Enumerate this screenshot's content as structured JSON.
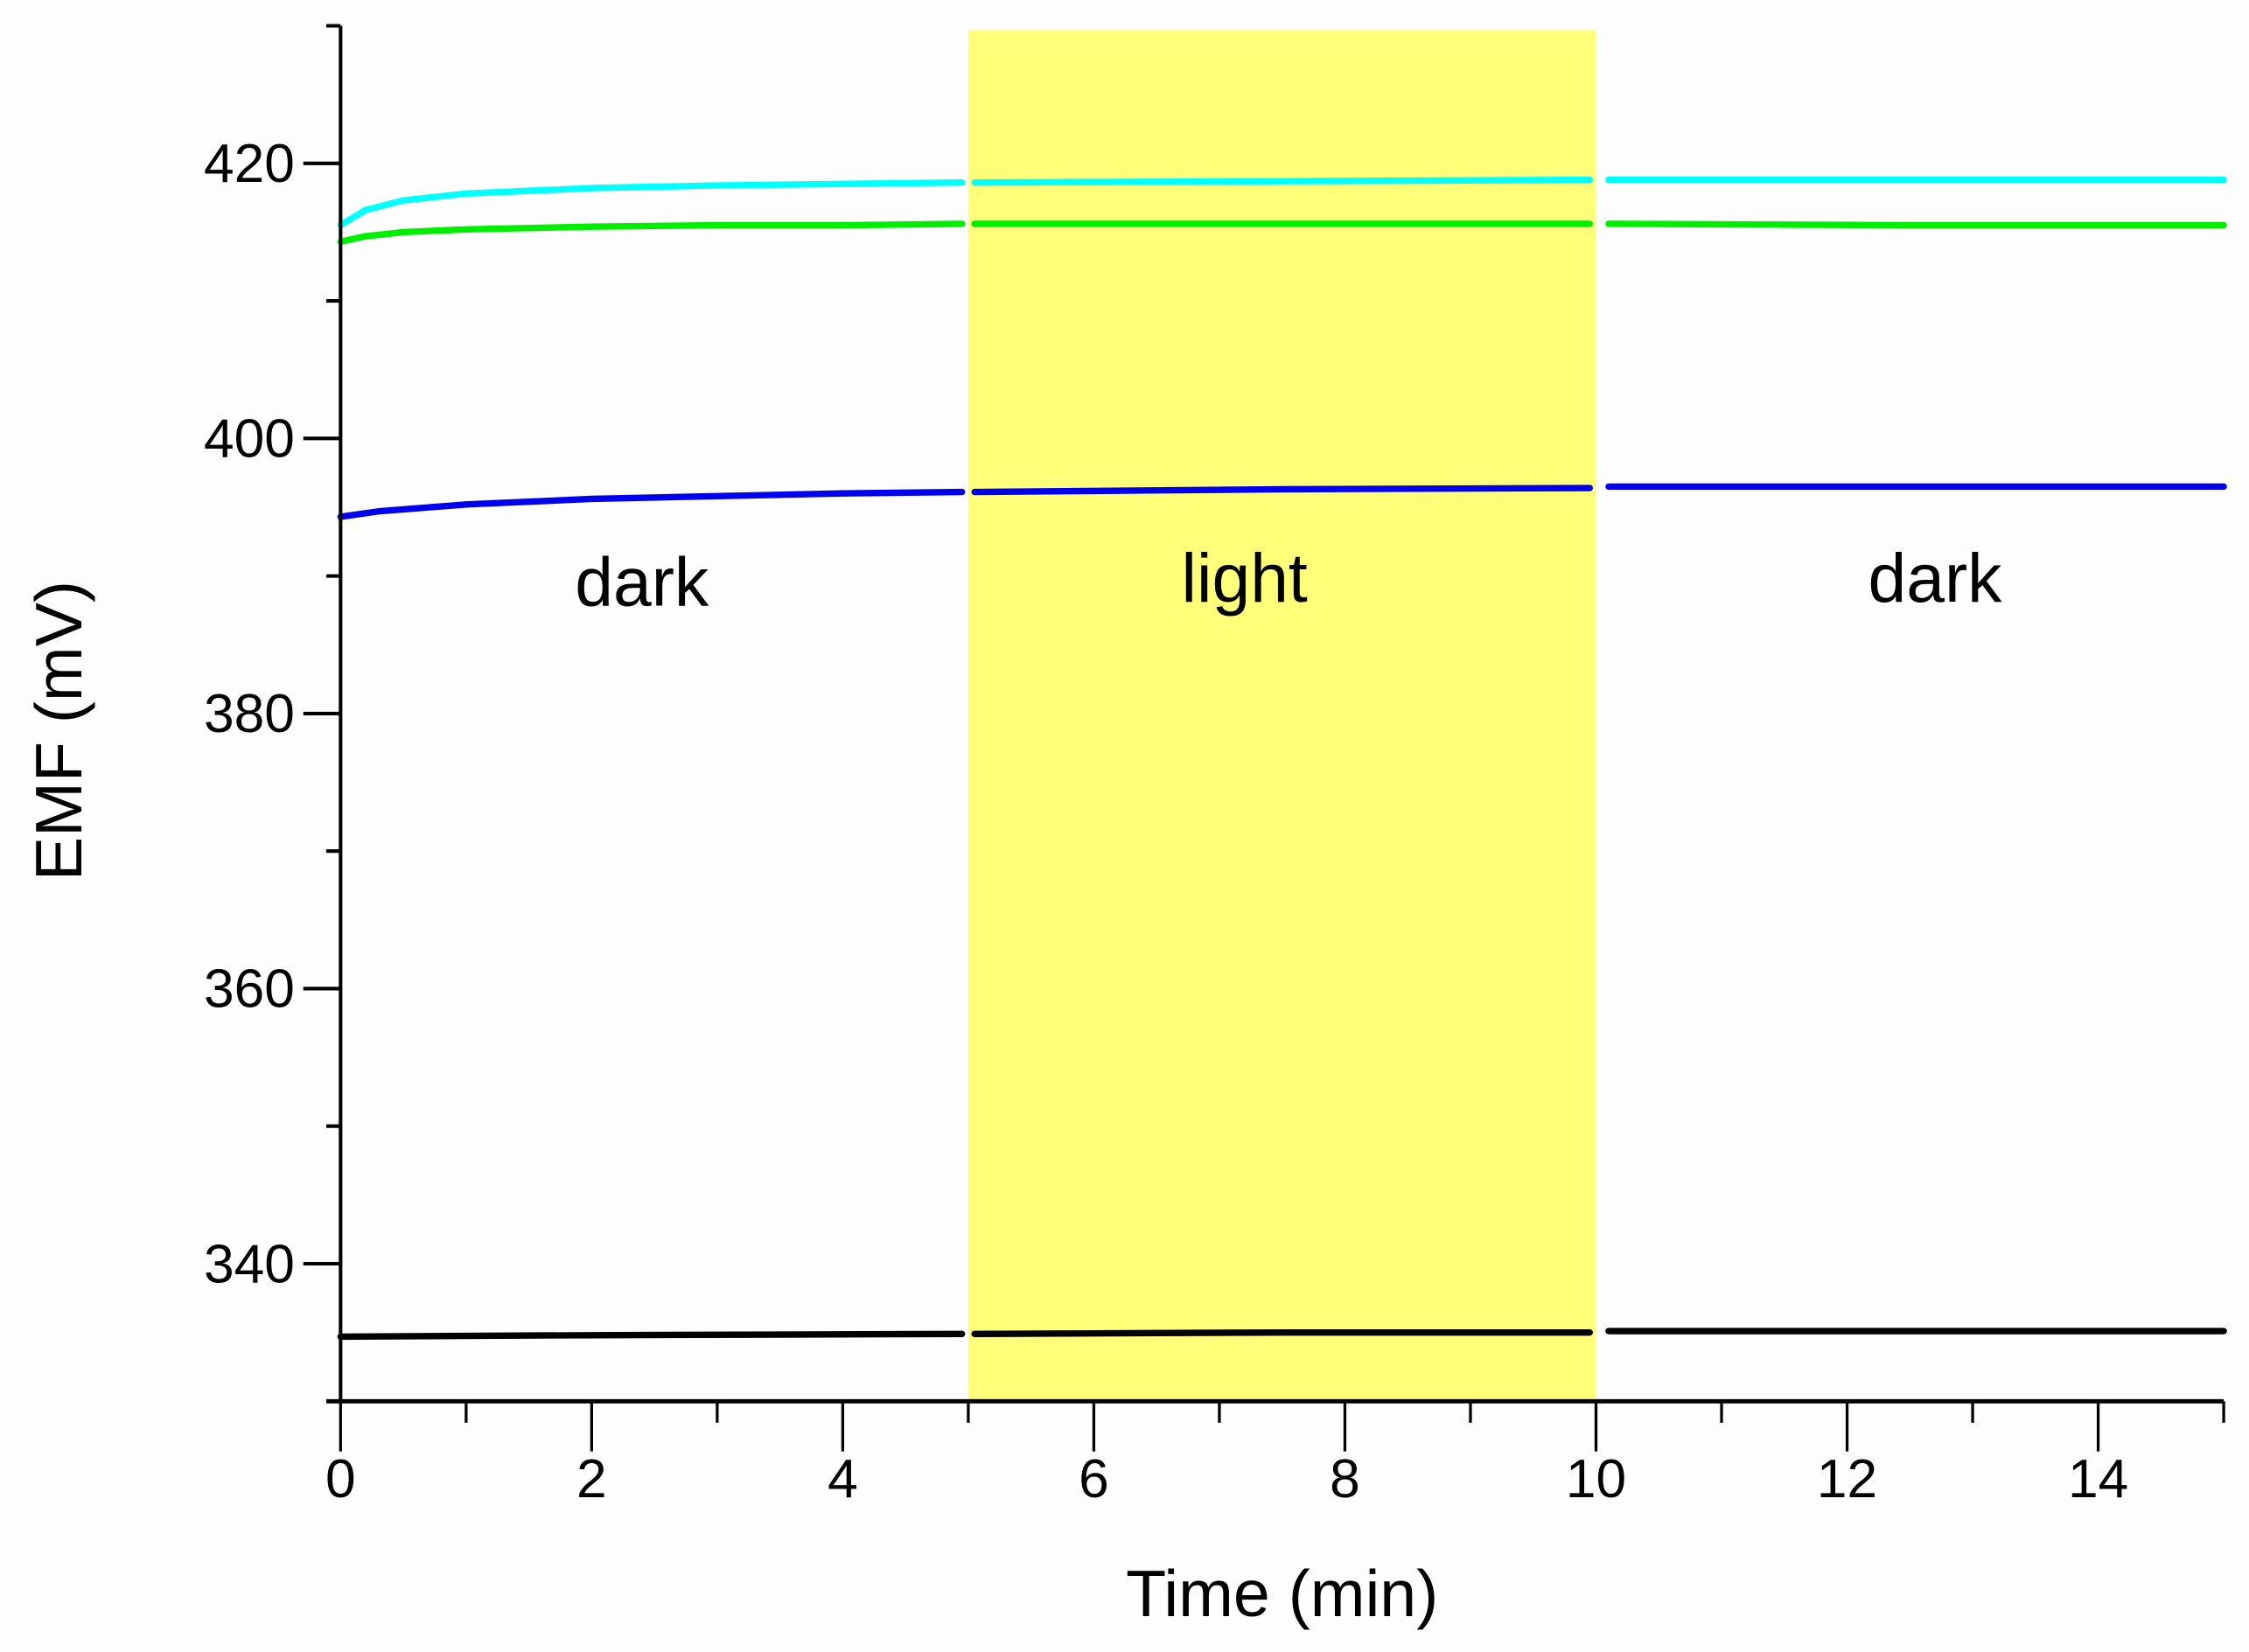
{
  "chart_data": {
    "type": "line",
    "xlabel": "Time (min)",
    "ylabel": "EMF (mV)",
    "xlim": [
      0,
      15
    ],
    "ylim": [
      330,
      430
    ],
    "xticks": [
      0,
      2,
      4,
      6,
      8,
      10,
      12,
      14
    ],
    "xtick_labels": [
      "0",
      "2",
      "4",
      "6",
      "8",
      "10",
      "12",
      "14"
    ],
    "yticks": [
      340,
      360,
      380,
      400,
      420
    ],
    "ytick_labels": [
      "340",
      "360",
      "380",
      "400",
      "420"
    ],
    "grid": false,
    "shaded_region": {
      "x": [
        5,
        10
      ],
      "color": "#ffff7a"
    },
    "annotations": [
      {
        "text": "dark",
        "x": 2.4,
        "y": 389.5
      },
      {
        "text": "light",
        "x": 7.2,
        "y": 389.8
      },
      {
        "text": "dark",
        "x": 12.7,
        "y": 389.8
      }
    ],
    "series": [
      {
        "color": "#00ffff",
        "segments": [
          {
            "x": [
              0,
              0.2,
              0.5,
              1,
              2,
              3,
              4,
              4.95
            ],
            "y": [
              415.5,
              416.6,
              417.3,
              417.8,
              418.2,
              418.4,
              418.5,
              418.6
            ]
          },
          {
            "x": [
              5.05,
              7.5,
              9.95
            ],
            "y": [
              418.6,
              418.7,
              418.8
            ]
          },
          {
            "x": [
              10.1,
              12.5,
              15
            ],
            "y": [
              418.8,
              418.8,
              418.8
            ]
          }
        ]
      },
      {
        "color": "#00ee00",
        "segments": [
          {
            "x": [
              0,
              0.2,
              0.5,
              1,
              2,
              3,
              4,
              4.95
            ],
            "y": [
              414.3,
              414.7,
              415.0,
              415.2,
              415.4,
              415.5,
              415.5,
              415.6
            ]
          },
          {
            "x": [
              5.05,
              7.5,
              9.95
            ],
            "y": [
              415.6,
              415.6,
              415.6
            ]
          },
          {
            "x": [
              10.1,
              12.5,
              15
            ],
            "y": [
              415.6,
              415.5,
              415.5
            ]
          }
        ]
      },
      {
        "color": "#0000ee",
        "segments": [
          {
            "x": [
              0,
              0.3,
              1,
              2,
              3,
              4,
              4.95
            ],
            "y": [
              394.3,
              394.7,
              395.2,
              395.6,
              395.8,
              396.0,
              396.1
            ]
          },
          {
            "x": [
              5.05,
              7.5,
              9.95
            ],
            "y": [
              396.1,
              396.3,
              396.4
            ]
          },
          {
            "x": [
              10.1,
              12.5,
              15
            ],
            "y": [
              396.5,
              396.5,
              396.5
            ]
          }
        ]
      },
      {
        "color": "#000000",
        "segments": [
          {
            "x": [
              0,
              2,
              4.95
            ],
            "y": [
              334.7,
              334.8,
              334.9
            ]
          },
          {
            "x": [
              5.05,
              7.5,
              9.95
            ],
            "y": [
              334.9,
              335.0,
              335.0
            ]
          },
          {
            "x": [
              10.1,
              12.5,
              15
            ],
            "y": [
              335.1,
              335.1,
              335.1
            ]
          }
        ]
      }
    ]
  }
}
